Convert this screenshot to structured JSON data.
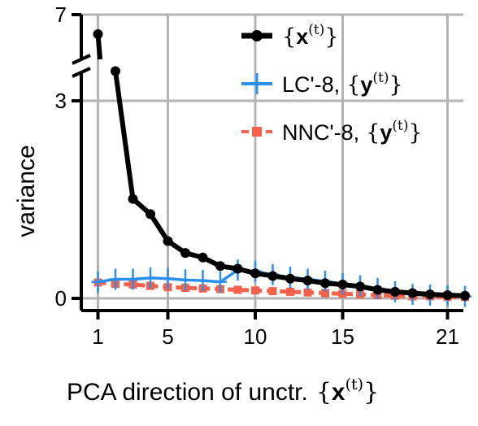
{
  "chart_data": {
    "type": "line",
    "xlabel": "PCA direction of unctr.",
    "xlabel_math": {
      "open": "{",
      "var": "x",
      "sup": "(t)",
      "close": "}"
    },
    "ylabel": "variance",
    "x_ticks": [
      "1",
      "5",
      "10",
      "15",
      "21"
    ],
    "y_ticks": [
      "0",
      "3",
      "7"
    ],
    "ylim_lower": [
      -0.08,
      3.0
    ],
    "ylim_upper": [
      5.5,
      7.0
    ],
    "y_axis_broken": true,
    "grid": true,
    "legend_position": "top-right",
    "x": [
      1,
      2,
      3,
      4,
      5,
      6,
      7,
      8,
      9,
      10,
      11,
      12,
      13,
      14,
      15,
      16,
      17,
      18,
      19,
      20,
      21,
      22
    ],
    "series": [
      {
        "name": "",
        "legend": {
          "open": "{",
          "var": "x",
          "sup": "(t)",
          "close": "}"
        },
        "color": "#000000",
        "marker": "circle",
        "values": [
          6.2,
          3.45,
          1.51,
          1.28,
          0.87,
          0.69,
          0.62,
          0.49,
          0.45,
          0.38,
          0.34,
          0.3,
          0.27,
          0.23,
          0.21,
          0.18,
          0.13,
          0.1,
          0.08,
          0.06,
          0.05,
          0.04
        ]
      },
      {
        "name": "LC'-8,",
        "legend": {
          "open": "{",
          "var": "y",
          "sup": "(t)",
          "close": "}"
        },
        "color": "#2b8ff0",
        "marker": "plus",
        "values": [
          0.25,
          0.29,
          0.29,
          0.31,
          0.3,
          0.28,
          0.27,
          0.25,
          0.43,
          0.41,
          0.36,
          0.32,
          0.29,
          0.26,
          0.22,
          0.19,
          0.15,
          0.1,
          0.06,
          0.05,
          0.04,
          0.03
        ]
      },
      {
        "name": "NNC'-8,",
        "legend": {
          "open": "{",
          "var": "y",
          "sup": "(t)",
          "close": "}"
        },
        "color": "#f4624b",
        "marker": "square",
        "dashed": true,
        "values": [
          0.24,
          0.22,
          0.21,
          0.19,
          0.17,
          0.16,
          0.15,
          0.14,
          0.13,
          0.12,
          0.11,
          0.1,
          0.09,
          0.08,
          0.07,
          0.06,
          0.05,
          0.04,
          0.03,
          0.03,
          0.02,
          0.02
        ]
      }
    ]
  }
}
